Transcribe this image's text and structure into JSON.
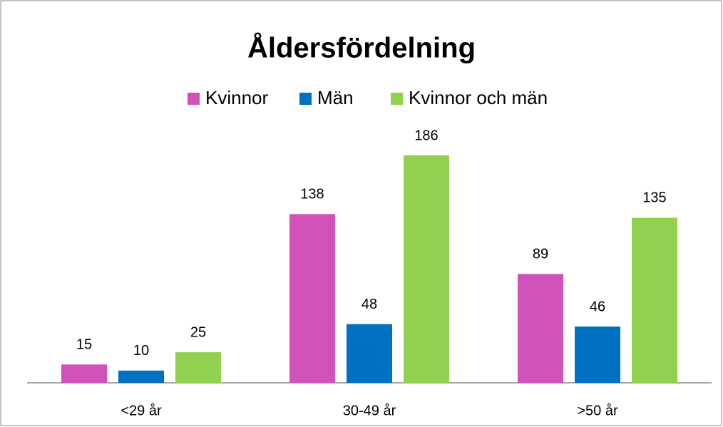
{
  "chart_data": {
    "type": "bar",
    "title": "Åldersfördelning",
    "categories": [
      "<29 år",
      "30-49 år",
      ">50 år"
    ],
    "series": [
      {
        "name": "Kvinnor",
        "color": "#d052b8",
        "values": [
          15,
          138,
          89
        ]
      },
      {
        "name": "Män",
        "color": "#0070c0",
        "values": [
          10,
          48,
          46
        ]
      },
      {
        "name": "Kvinnor och män",
        "color": "#92d050",
        "values": [
          25,
          186,
          135
        ]
      }
    ],
    "legend": "top"
  }
}
